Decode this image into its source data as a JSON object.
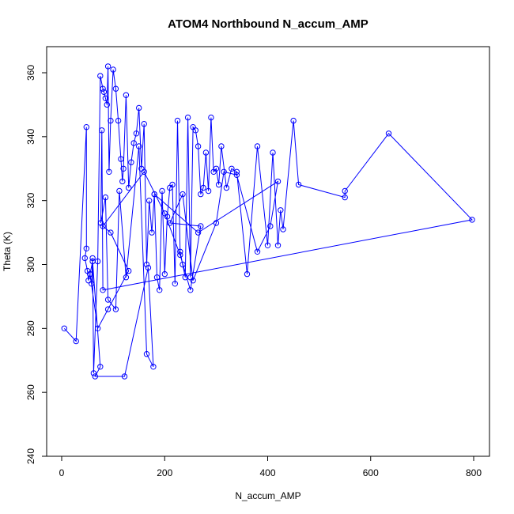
{
  "chart_data": {
    "type": "scatter",
    "title": "ATOM4 Northbound N_accum_AMP",
    "xlabel": "N_accum_AMP",
    "ylabel": "Theta (K)",
    "xlim": [
      0,
      800
    ],
    "ylim": [
      240,
      360
    ],
    "xticks": [
      "0",
      "200",
      "400",
      "600",
      "800"
    ],
    "yticks": [
      "240",
      "260",
      "280",
      "300",
      "320",
      "340",
      "360"
    ],
    "grid": false,
    "connected": true,
    "series_color": "#0000ff",
    "x": [
      5,
      28,
      48,
      48,
      45,
      50,
      52,
      55,
      58,
      60,
      62,
      70,
      75,
      80,
      82,
      85,
      88,
      90,
      92,
      95,
      100,
      105,
      110,
      115,
      118,
      120,
      125,
      130,
      135,
      140,
      145,
      150,
      155,
      160,
      165,
      170,
      175,
      180,
      185,
      190,
      195,
      200,
      205,
      210,
      215,
      220,
      225,
      230,
      235,
      240,
      245,
      250,
      255,
      260,
      265,
      270,
      275,
      280,
      285,
      290,
      295,
      300,
      305,
      310,
      320,
      330,
      340,
      360,
      380,
      400,
      410,
      420,
      425,
      430,
      450,
      460,
      550,
      550,
      635,
      797,
      80,
      78,
      76,
      85,
      90,
      105,
      112,
      125,
      150,
      165,
      178,
      168,
      122,
      65,
      75,
      60,
      55,
      70,
      90,
      130,
      95,
      80,
      160,
      200,
      230,
      250,
      270,
      210,
      235,
      255,
      300,
      315,
      340,
      380,
      405,
      420,
      265,
      180
    ],
    "y": [
      280,
      276,
      343,
      305,
      302,
      298,
      295,
      297,
      294,
      302,
      266,
      301,
      359,
      355,
      354,
      352,
      350,
      362,
      329,
      345,
      361,
      355,
      345,
      333,
      326,
      330,
      353,
      324,
      332,
      338,
      341,
      349,
      330,
      344,
      300,
      320,
      310,
      322,
      296,
      292,
      323,
      297,
      315,
      324,
      325,
      294,
      345,
      304,
      300,
      296,
      346,
      296,
      343,
      342,
      337,
      322,
      324,
      335,
      323,
      346,
      329,
      330,
      325,
      337,
      324,
      330,
      329,
      297,
      337,
      306,
      335,
      306,
      317,
      311,
      345,
      325,
      321,
      323,
      341,
      314,
      292,
      342,
      313,
      321,
      289,
      286,
      323,
      296,
      337,
      272,
      268,
      299,
      265,
      265,
      268,
      301,
      297,
      280,
      286,
      298,
      310,
      312,
      329,
      316,
      303,
      292,
      312,
      313,
      322,
      295,
      313,
      329,
      328,
      304,
      312,
      326,
      310,
      322
    ]
  }
}
